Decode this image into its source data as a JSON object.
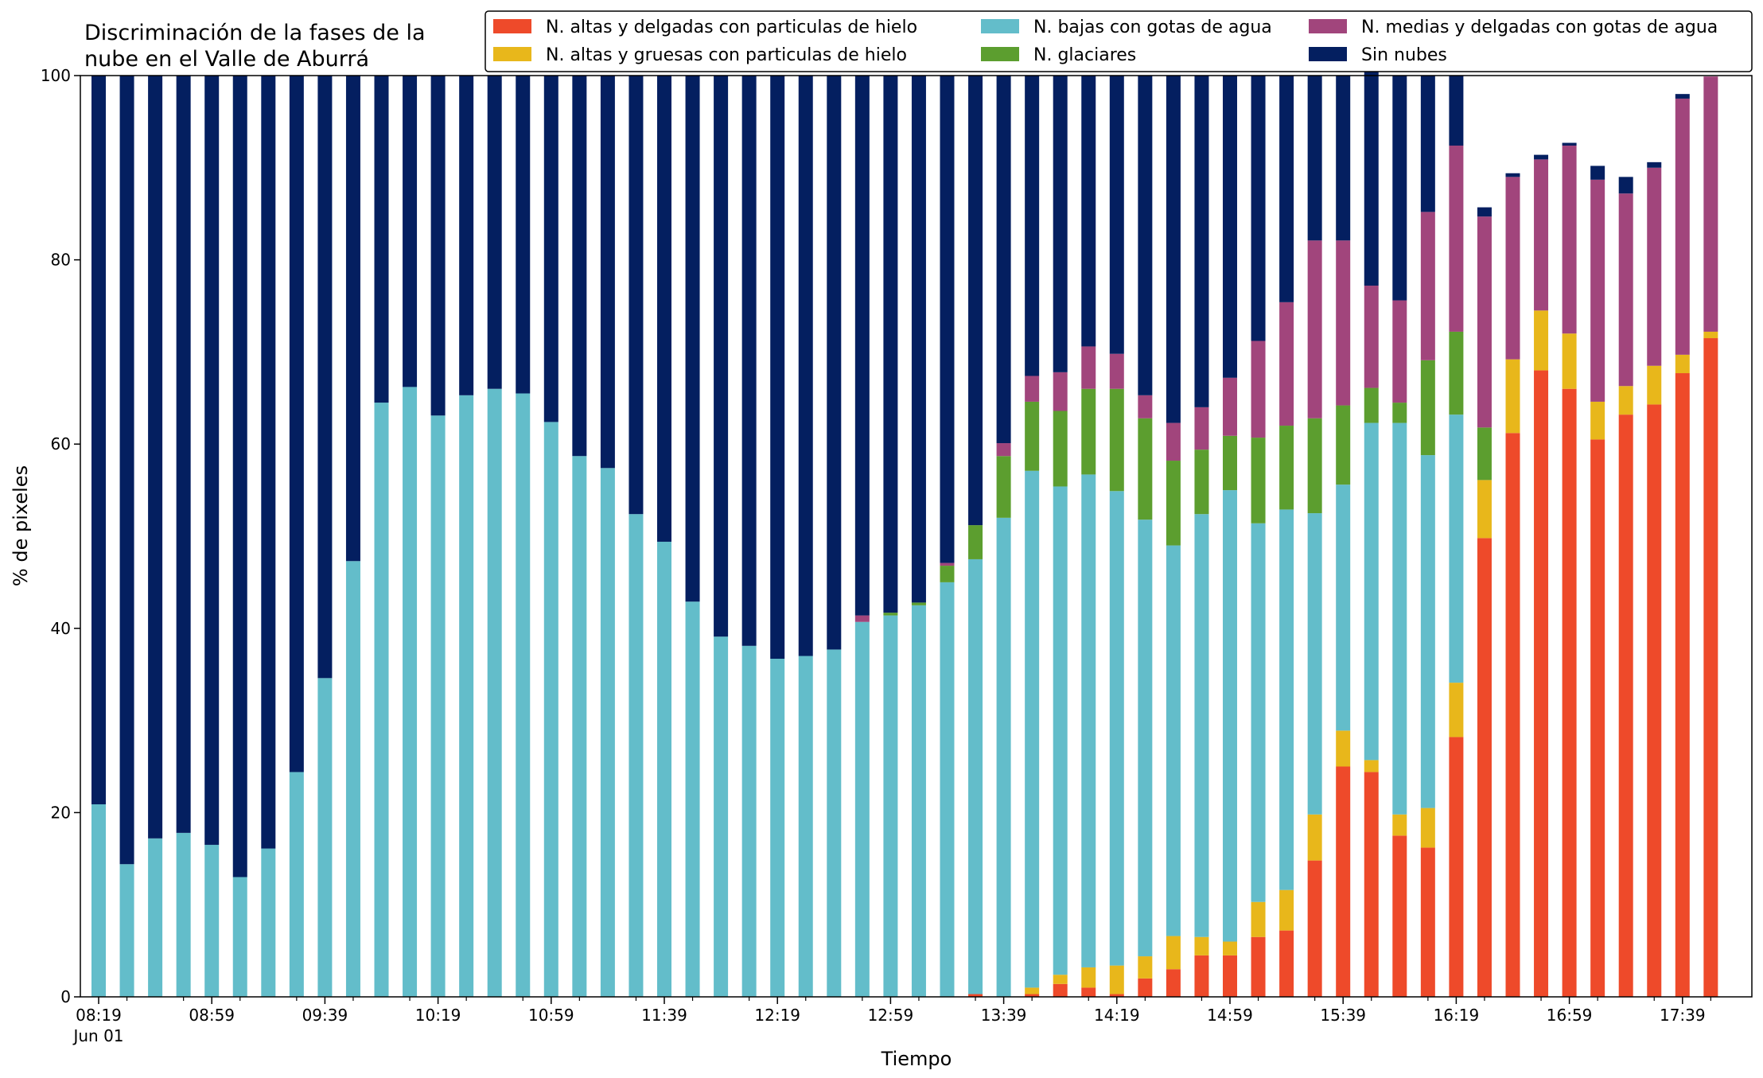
{
  "chart_data": {
    "type": "bar",
    "stacked": true,
    "title_line1": "Discriminación de la fases de la",
    "title_line2": "nube en el Valle de Aburrá",
    "xlabel": "Tiempo",
    "ylabel": "% de pixeles",
    "ylim": [
      0,
      100
    ],
    "yticks": [
      0,
      20,
      40,
      60,
      80,
      100
    ],
    "x_tick_labels": [
      "08:19",
      "08:59",
      "09:39",
      "10:19",
      "10:59",
      "11:39",
      "12:19",
      "12:59",
      "13:39",
      "14:19",
      "14:59",
      "15:39",
      "16:19",
      "16:59",
      "17:39"
    ],
    "x_date_label": "Jun 01",
    "legend_position": "top-right",
    "categories": [
      "08:19",
      "08:29",
      "08:39",
      "08:49",
      "08:59",
      "09:09",
      "09:19",
      "09:29",
      "09:39",
      "09:49",
      "09:59",
      "10:09",
      "10:19",
      "10:29",
      "10:39",
      "10:49",
      "10:59",
      "11:09",
      "11:19",
      "11:29",
      "11:39",
      "11:49",
      "11:59",
      "12:09",
      "12:19",
      "12:29",
      "12:39",
      "12:49",
      "12:59",
      "13:09",
      "13:19",
      "13:29",
      "13:39",
      "13:49",
      "13:59",
      "14:09",
      "14:19",
      "14:29",
      "14:39",
      "14:49",
      "14:59",
      "15:09",
      "15:19",
      "15:29",
      "15:39",
      "15:49",
      "15:59",
      "16:09",
      "16:19",
      "16:29",
      "16:39",
      "16:49",
      "16:59",
      "17:09",
      "17:19",
      "17:29",
      "17:39",
      "17:49"
    ],
    "series": [
      {
        "name": "N. altas y delgadas con particulas de hielo",
        "color": "#ee4a2a",
        "values": [
          0,
          0,
          0,
          0,
          0,
          0,
          0,
          0,
          0,
          0,
          0,
          0,
          0,
          0,
          0,
          0,
          0,
          0,
          0,
          0,
          0,
          0,
          0,
          0,
          0,
          0,
          0,
          0,
          0,
          0,
          0,
          0.3,
          0,
          0.3,
          1.4,
          1.0,
          0.3,
          2.0,
          3.0,
          4.5,
          4.5,
          6.5,
          7.2,
          14.8,
          25.0,
          24.4,
          17.5,
          16.2,
          28.2,
          49.8,
          61.2,
          68.0,
          66.0,
          60.5,
          63.2,
          64.3,
          67.7,
          71.5
        ]
      },
      {
        "name": "N. altas y gruesas con particulas de hielo",
        "color": "#e8b71b",
        "values": [
          0,
          0,
          0,
          0,
          0,
          0,
          0,
          0,
          0,
          0,
          0,
          0,
          0,
          0,
          0,
          0,
          0,
          0,
          0,
          0,
          0,
          0,
          0,
          0,
          0,
          0,
          0,
          0,
          0,
          0,
          0,
          0,
          0,
          0.7,
          1.0,
          2.2,
          3.1,
          2.4,
          3.6,
          2.0,
          1.5,
          3.8,
          4.4,
          5.0,
          3.9,
          1.3,
          2.3,
          4.3,
          5.9,
          6.3,
          8.0,
          6.5,
          6.0,
          4.1,
          3.1,
          4.2,
          2.0,
          0.7
        ]
      },
      {
        "name": "N. bajas con gotas de agua",
        "color": "#63bdca",
        "values": [
          20.9,
          14.4,
          17.2,
          17.8,
          16.5,
          13.0,
          16.1,
          24.4,
          34.6,
          47.3,
          64.5,
          66.2,
          63.1,
          65.3,
          66.0,
          65.5,
          62.4,
          58.7,
          57.4,
          52.4,
          49.4,
          42.9,
          39.1,
          38.1,
          36.7,
          37.0,
          37.7,
          40.7,
          41.4,
          42.5,
          45.0,
          47.2,
          52.0,
          56.1,
          53.0,
          53.5,
          51.5,
          47.4,
          42.4,
          45.9,
          49.0,
          41.1,
          41.3,
          32.7,
          26.7,
          36.6,
          42.5,
          38.3,
          29.1,
          0,
          0,
          0,
          0,
          0,
          0,
          0,
          0,
          0
        ]
      },
      {
        "name": "N. glaciares",
        "color": "#5c9e2f",
        "values": [
          0,
          0,
          0,
          0,
          0,
          0,
          0,
          0,
          0,
          0,
          0,
          0,
          0,
          0,
          0,
          0,
          0,
          0,
          0,
          0,
          0,
          0,
          0,
          0,
          0,
          0,
          0,
          0,
          0.3,
          0.3,
          1.8,
          3.7,
          6.7,
          7.5,
          8.2,
          9.3,
          11.1,
          11.0,
          9.2,
          7.0,
          5.9,
          9.3,
          9.1,
          10.3,
          8.6,
          3.8,
          2.2,
          10.3,
          9.0,
          5.7,
          0,
          0,
          0,
          0,
          0,
          0,
          0,
          0
        ]
      },
      {
        "name": "N. medias y delgadas con gotas de agua",
        "color": "#a1457c",
        "values": [
          0,
          0,
          0,
          0,
          0,
          0,
          0,
          0,
          0,
          0,
          0,
          0,
          0,
          0,
          0,
          0,
          0,
          0,
          0,
          0,
          0,
          0,
          0,
          0,
          0,
          0,
          0,
          0.7,
          0,
          0,
          0.3,
          0,
          1.4,
          2.8,
          4.2,
          4.6,
          3.8,
          2.5,
          4.1,
          4.6,
          6.3,
          10.5,
          13.4,
          19.3,
          17.9,
          11.1,
          11.1,
          16.1,
          20.2,
          22.9,
          19.8,
          16.4,
          20.4,
          24.1,
          20.9,
          21.5,
          27.8,
          27.7
        ]
      },
      {
        "name": "Sin nubes",
        "color": "#041f60",
        "values": [
          79.1,
          85.6,
          82.8,
          82.2,
          83.5,
          87.0,
          83.9,
          75.6,
          65.4,
          52.7,
          35.5,
          33.8,
          36.9,
          34.7,
          34.0,
          34.5,
          37.6,
          41.3,
          42.6,
          47.6,
          50.6,
          57.1,
          60.9,
          61.9,
          63.3,
          63.0,
          62.3,
          58.6,
          58.3,
          57.2,
          52.9,
          48.8,
          39.9,
          32.6,
          32.2,
          29.4,
          30.2,
          34.7,
          37.7,
          36.0,
          32.8,
          28.8,
          24.6,
          17.9,
          17.9,
          23.2,
          24.4,
          14.8,
          7.6,
          1.0,
          0.4,
          0.5,
          0.3,
          1.5,
          1.8,
          0.6,
          0.5,
          0
        ]
      }
    ]
  }
}
